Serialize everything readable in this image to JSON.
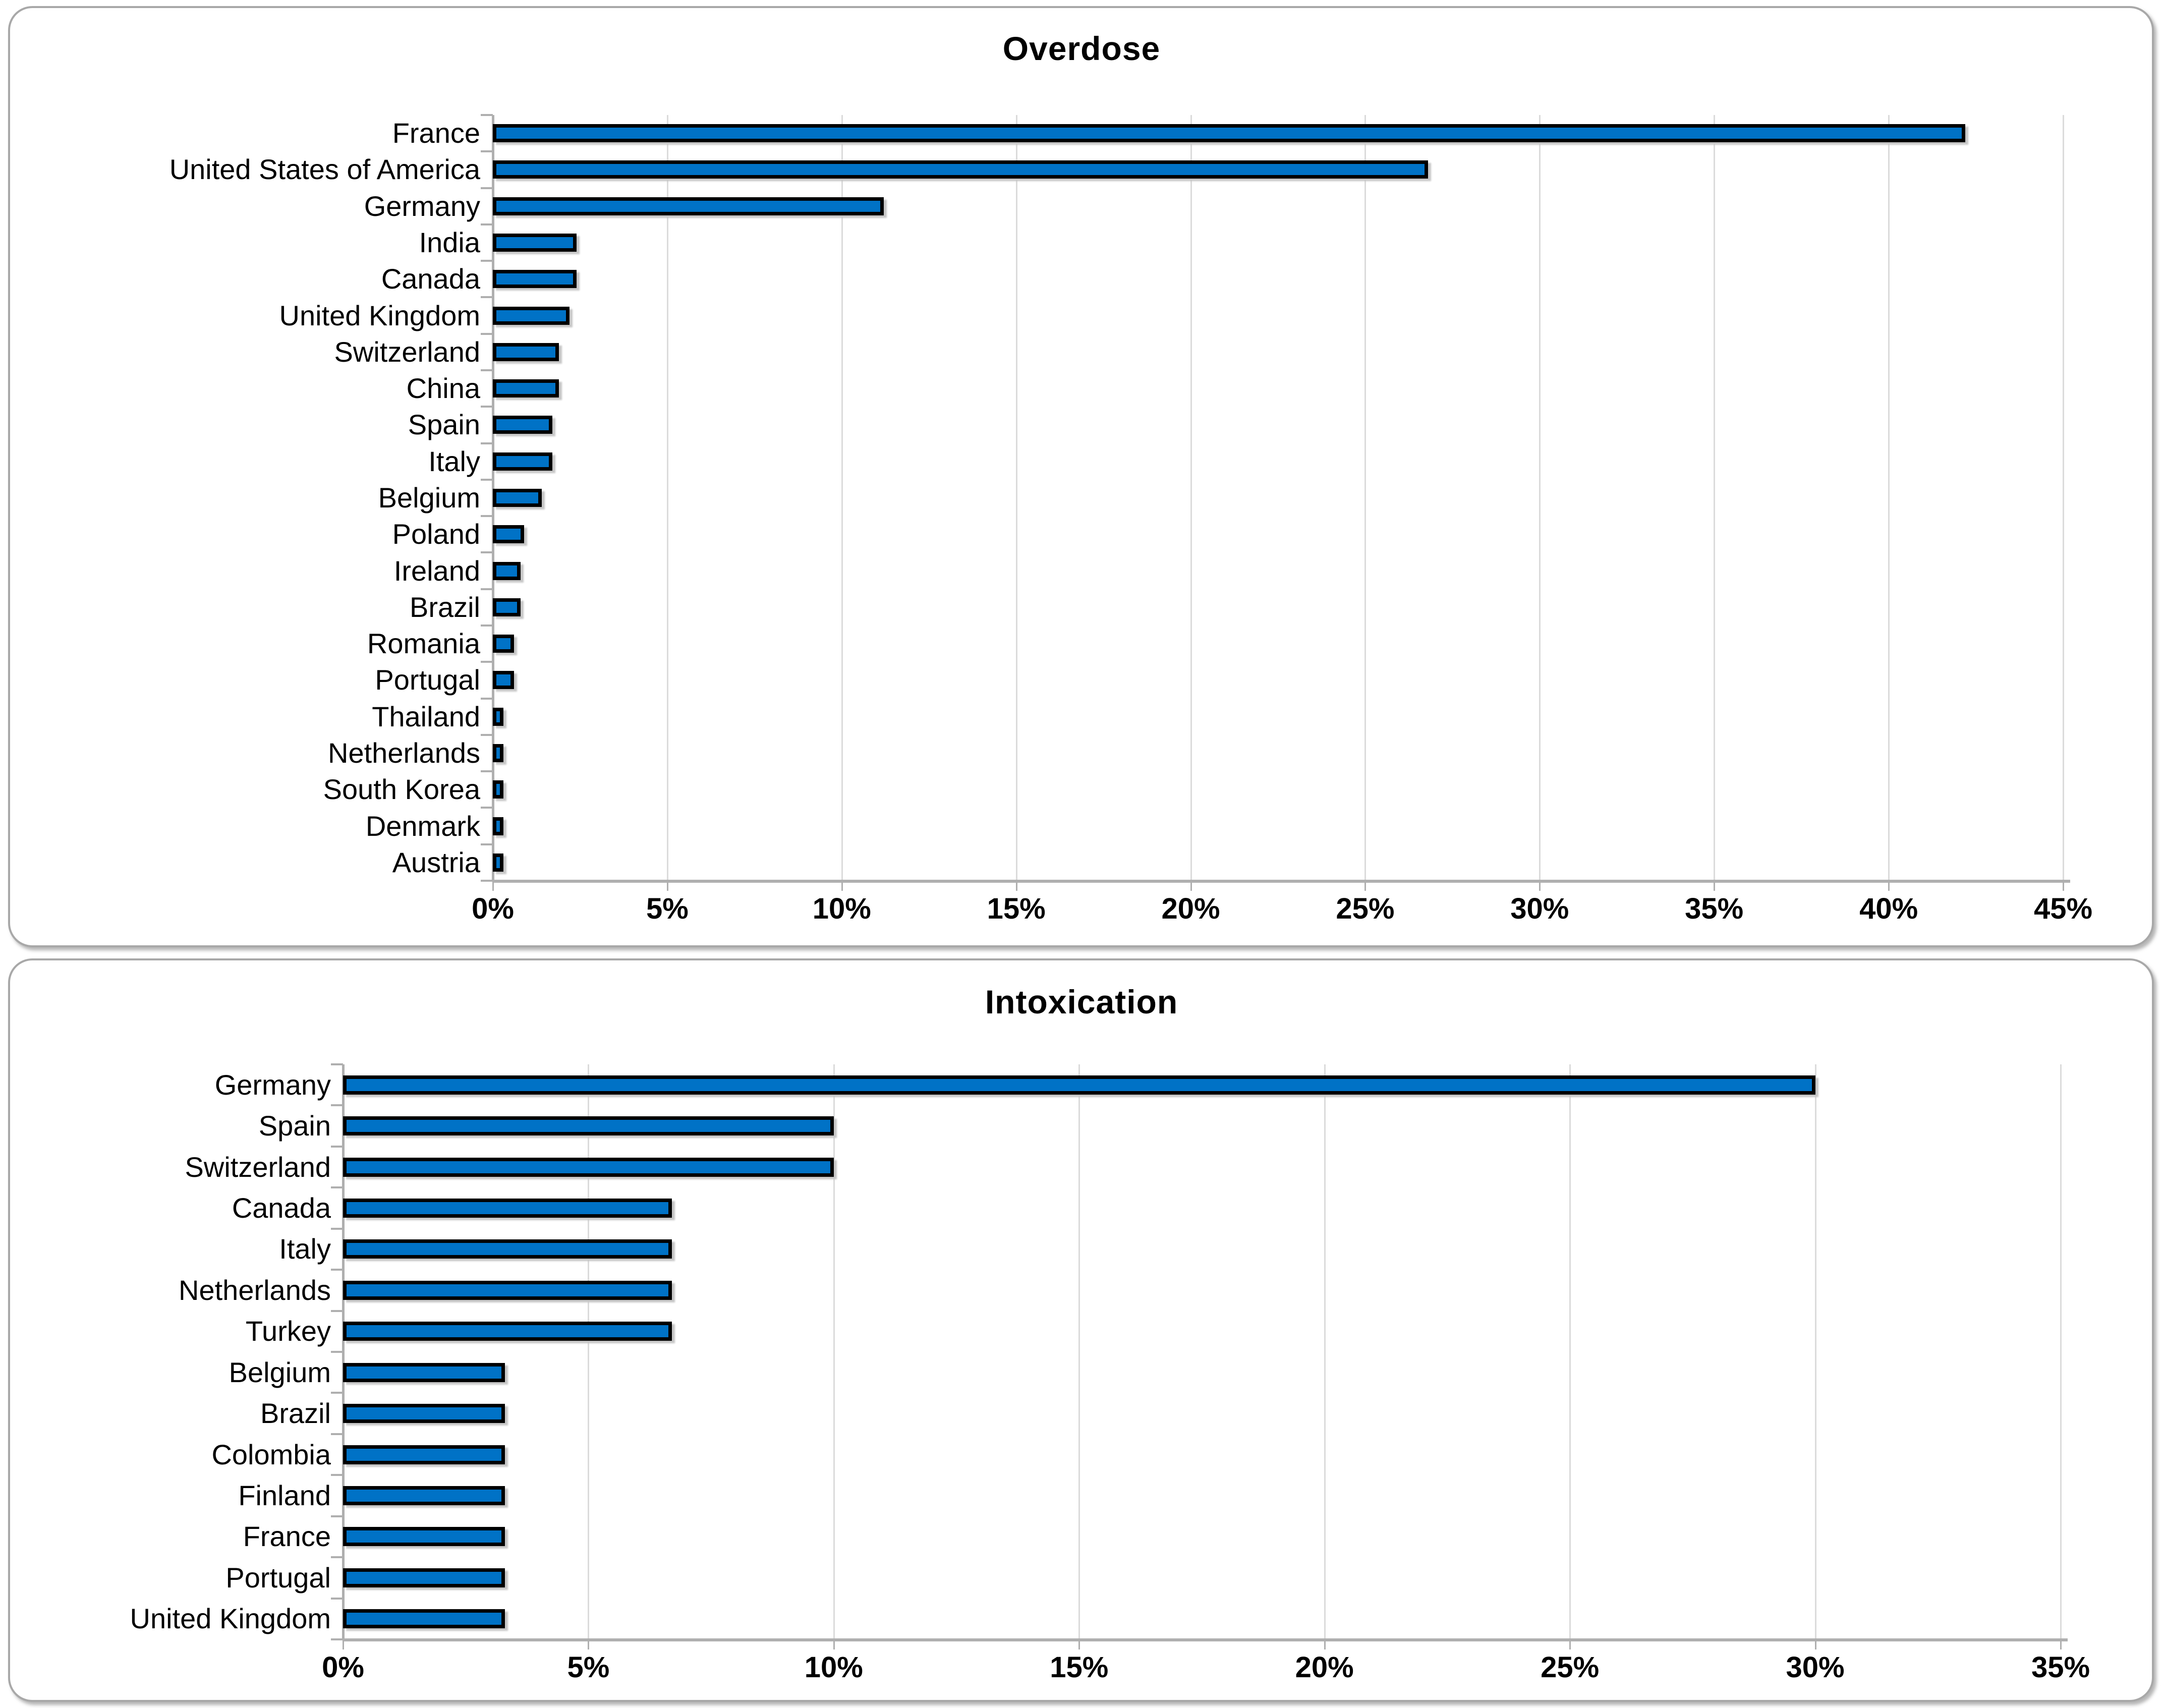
{
  "chart_data": [
    {
      "type": "bar",
      "orientation": "horizontal",
      "title": "Overdose",
      "xlabel": "",
      "ylabel": "",
      "xlim": [
        0,
        45
      ],
      "tick_step_pct": 5,
      "ticks": [
        "0%",
        "5%",
        "10%",
        "15%",
        "20%",
        "25%",
        "30%",
        "35%",
        "40%",
        "45%"
      ],
      "grid": "vertical-on",
      "legend": "none",
      "categories": [
        "France",
        "United States of America",
        "Germany",
        "India",
        "Canada",
        "United Kingdom",
        "Switzerland",
        "China",
        "Spain",
        "Italy",
        "Belgium",
        "Poland",
        "Ireland",
        "Brazil",
        "Romania",
        "Portugal",
        "Thailand",
        "Netherlands",
        "South Korea",
        "Denmark",
        "Austria"
      ],
      "values": [
        42.2,
        26.8,
        11.2,
        2.4,
        2.4,
        2.2,
        1.9,
        1.9,
        1.7,
        1.7,
        1.4,
        0.9,
        0.8,
        0.8,
        0.6,
        0.6,
        0.3,
        0.3,
        0.3,
        0.3,
        0.3
      ],
      "value_unit": "%"
    },
    {
      "type": "bar",
      "orientation": "horizontal",
      "title": "Intoxication",
      "xlabel": "",
      "ylabel": "",
      "xlim": [
        0,
        35
      ],
      "tick_step_pct": 5,
      "ticks": [
        "0%",
        "5%",
        "10%",
        "15%",
        "20%",
        "25%",
        "30%",
        "35%"
      ],
      "grid": "vertical-on",
      "legend": "none",
      "categories": [
        "Germany",
        "Spain",
        "Switzerland",
        "Canada",
        "Italy",
        "Netherlands",
        "Turkey",
        "Belgium",
        "Brazil",
        "Colombia",
        "Finland",
        "France",
        "Portugal",
        "United Kingdom"
      ],
      "values": [
        30.0,
        10.0,
        10.0,
        6.7,
        6.7,
        6.7,
        6.7,
        3.3,
        3.3,
        3.3,
        3.3,
        3.3,
        3.3,
        3.3
      ],
      "value_unit": "%"
    }
  ],
  "colors": {
    "bar_fill": "#0072C6",
    "bar_border": "#000000",
    "gridline": "#DBDBDB",
    "axis_line": "#AFAFAF",
    "panel_border": "#A8A8A8",
    "text": "#000000"
  }
}
